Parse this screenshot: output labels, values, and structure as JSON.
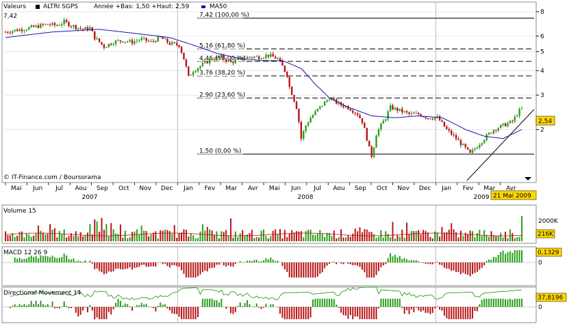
{
  "colors": {
    "background": "#ffffff",
    "border": "#888888",
    "grid": "#d8d8d8",
    "up": "#2a9d1a",
    "down": "#b81414",
    "ma": "#1414b4",
    "dark": "#000000",
    "highlight": "#ffd700",
    "annotation_bg": "#ffffff"
  },
  "chart_data": [
    {
      "type": "candlestick",
      "legend": {
        "label": "Valeurs",
        "series": "ALTRI SGPS",
        "summary": "Année +Bas: 1,50 +Haut: 2,59",
        "ma_label": "MA50"
      },
      "top_left_value": "7,42",
      "copyright": "© IT-Finance.com / Boursorama",
      "last_value": "2,54",
      "date_label": "21 Mai 2009",
      "yticks": [
        "8",
        "6",
        "5",
        "4",
        "3",
        "2"
      ],
      "ylim": [
        1.1,
        8.2
      ],
      "months": [
        "Mai",
        "Jun",
        "Jul",
        "Aou",
        "Sep",
        "Oct",
        "Nov",
        "Dec",
        "Jan",
        "Fev",
        "Mar",
        "Avr",
        "Mai",
        "Jun",
        "Jul",
        "Aou",
        "Sep",
        "Oct",
        "Nov",
        "Dec",
        "Jan",
        "Fev",
        "Mar",
        "Avr"
      ],
      "years": [
        "2007",
        "2008",
        "2009"
      ],
      "fib_levels": [
        {
          "label": "7,42 (100,00 %)",
          "value": 7.42
        },
        {
          "label": "5,16 (61,80 %)",
          "value": 5.16
        },
        {
          "label": "4,46 (50,00 %)",
          "value": 4.46
        },
        {
          "label": "3,76 (38,20 %)",
          "value": 3.76
        },
        {
          "label": "2,90 (23,60 %)",
          "value": 2.9
        },
        {
          "label": "1,50 (0,00 %)",
          "value": 1.5
        }
      ],
      "close_keypoints": [
        [
          0,
          6.3
        ],
        [
          10,
          6.6
        ],
        [
          18,
          6.9
        ],
        [
          22,
          6.8
        ],
        [
          25,
          7.1
        ],
        [
          28,
          6.8
        ],
        [
          33,
          6.5
        ],
        [
          36,
          6.6
        ],
        [
          38,
          5.9
        ],
        [
          42,
          5.3
        ],
        [
          46,
          5.6
        ],
        [
          50,
          5.7
        ],
        [
          54,
          5.6
        ],
        [
          58,
          5.8
        ],
        [
          62,
          5.6
        ],
        [
          66,
          5.9
        ],
        [
          70,
          5.5
        ],
        [
          74,
          5.4
        ],
        [
          76,
          4.6
        ],
        [
          78,
          3.7
        ],
        [
          80,
          4.0
        ],
        [
          84,
          4.3
        ],
        [
          88,
          4.6
        ],
        [
          92,
          4.7
        ],
        [
          96,
          4.4
        ],
        [
          100,
          4.6
        ],
        [
          104,
          4.7
        ],
        [
          108,
          4.7
        ],
        [
          112,
          4.8
        ],
        [
          116,
          4.6
        ],
        [
          118,
          4.2
        ],
        [
          120,
          3.8
        ],
        [
          121,
          3.3
        ],
        [
          124,
          2.6
        ],
        [
          126,
          1.8
        ],
        [
          128,
          2.1
        ],
        [
          130,
          2.3
        ],
        [
          134,
          2.6
        ],
        [
          138,
          2.9
        ],
        [
          142,
          2.7
        ],
        [
          146,
          2.6
        ],
        [
          150,
          2.4
        ],
        [
          152,
          2.2
        ],
        [
          154,
          1.8
        ],
        [
          156,
          1.4
        ],
        [
          158,
          1.9
        ],
        [
          160,
          2.1
        ],
        [
          162,
          2.3
        ],
        [
          164,
          2.6
        ],
        [
          168,
          2.5
        ],
        [
          172,
          2.4
        ],
        [
          176,
          2.4
        ],
        [
          180,
          2.3
        ],
        [
          184,
          2.3
        ],
        [
          188,
          2.0
        ],
        [
          192,
          1.8
        ],
        [
          196,
          1.6
        ],
        [
          198,
          1.5
        ],
        [
          200,
          1.6
        ],
        [
          204,
          1.8
        ],
        [
          208,
          2.0
        ],
        [
          212,
          2.1
        ],
        [
          216,
          2.2
        ],
        [
          219,
          2.5
        ],
        [
          220,
          2.54
        ]
      ],
      "ma50_keypoints": [
        [
          0,
          5.9
        ],
        [
          20,
          6.3
        ],
        [
          40,
          6.5
        ],
        [
          60,
          6.1
        ],
        [
          70,
          5.9
        ],
        [
          80,
          5.4
        ],
        [
          90,
          4.9
        ],
        [
          100,
          4.6
        ],
        [
          110,
          4.5
        ],
        [
          118,
          4.5
        ],
        [
          126,
          4.1
        ],
        [
          132,
          3.4
        ],
        [
          138,
          2.9
        ],
        [
          146,
          2.6
        ],
        [
          156,
          2.35
        ],
        [
          166,
          2.3
        ],
        [
          176,
          2.35
        ],
        [
          186,
          2.3
        ],
        [
          196,
          2.0
        ],
        [
          204,
          1.85
        ],
        [
          212,
          1.8
        ],
        [
          220,
          2.0
        ]
      ]
    },
    {
      "type": "bar",
      "title": "Volume 15",
      "ytick": "2000K",
      "last_value": "216K"
    },
    {
      "type": "histogram",
      "title": "MACD 12 26 9",
      "ytick": "0",
      "last_value": "0,1329"
    },
    {
      "type": "histogram",
      "title": "Directional Movement 14",
      "ytick": "0",
      "last_value": "37,8196"
    }
  ]
}
